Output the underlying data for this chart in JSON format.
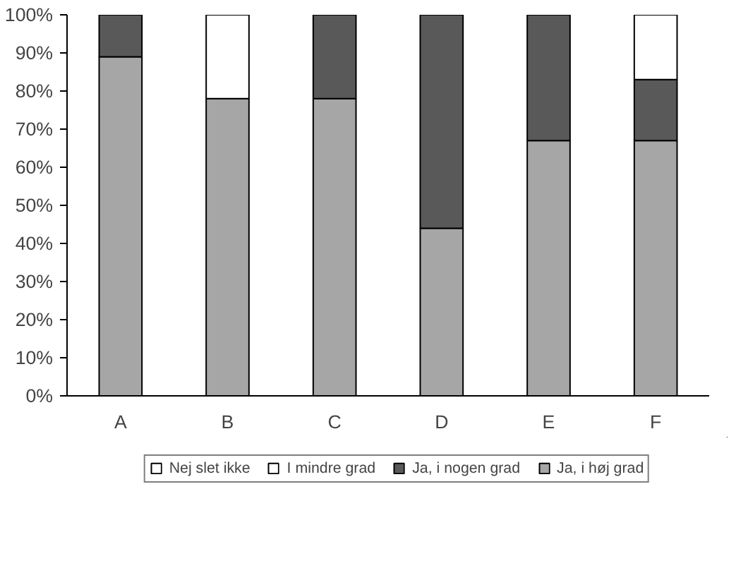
{
  "chart_data": {
    "type": "bar",
    "stacked": true,
    "categories": [
      "A",
      "B",
      "C",
      "D",
      "E",
      "F"
    ],
    "series": [
      {
        "name": "Ja, i høj grad",
        "color": "#a6a6a6",
        "values": [
          89,
          78,
          78,
          44,
          67,
          67
        ]
      },
      {
        "name": "Ja, i nogen grad",
        "color": "#595959",
        "values": [
          11,
          0,
          22,
          56,
          33,
          16
        ]
      },
      {
        "name": "I mindre grad",
        "color": "#ffffff",
        "values": [
          0,
          22,
          0,
          0,
          0,
          17
        ]
      },
      {
        "name": "Nej slet ikke",
        "color": "#ffffff",
        "values": [
          0,
          0,
          0,
          0,
          0,
          0
        ]
      }
    ],
    "ylim": [
      0,
      100
    ],
    "yticks": [
      {
        "value": 0,
        "label": "0%"
      },
      {
        "value": 10,
        "label": "10%"
      },
      {
        "value": 20,
        "label": "20%"
      },
      {
        "value": 30,
        "label": "30%"
      },
      {
        "value": 40,
        "label": "40%"
      },
      {
        "value": 50,
        "label": "50%"
      },
      {
        "value": 60,
        "label": "60%"
      },
      {
        "value": 70,
        "label": "70%"
      },
      {
        "value": 80,
        "label": "80%"
      },
      {
        "value": 90,
        "label": "90%"
      },
      {
        "value": 100,
        "label": "100%"
      }
    ],
    "grid": false,
    "legend": "bottom"
  }
}
